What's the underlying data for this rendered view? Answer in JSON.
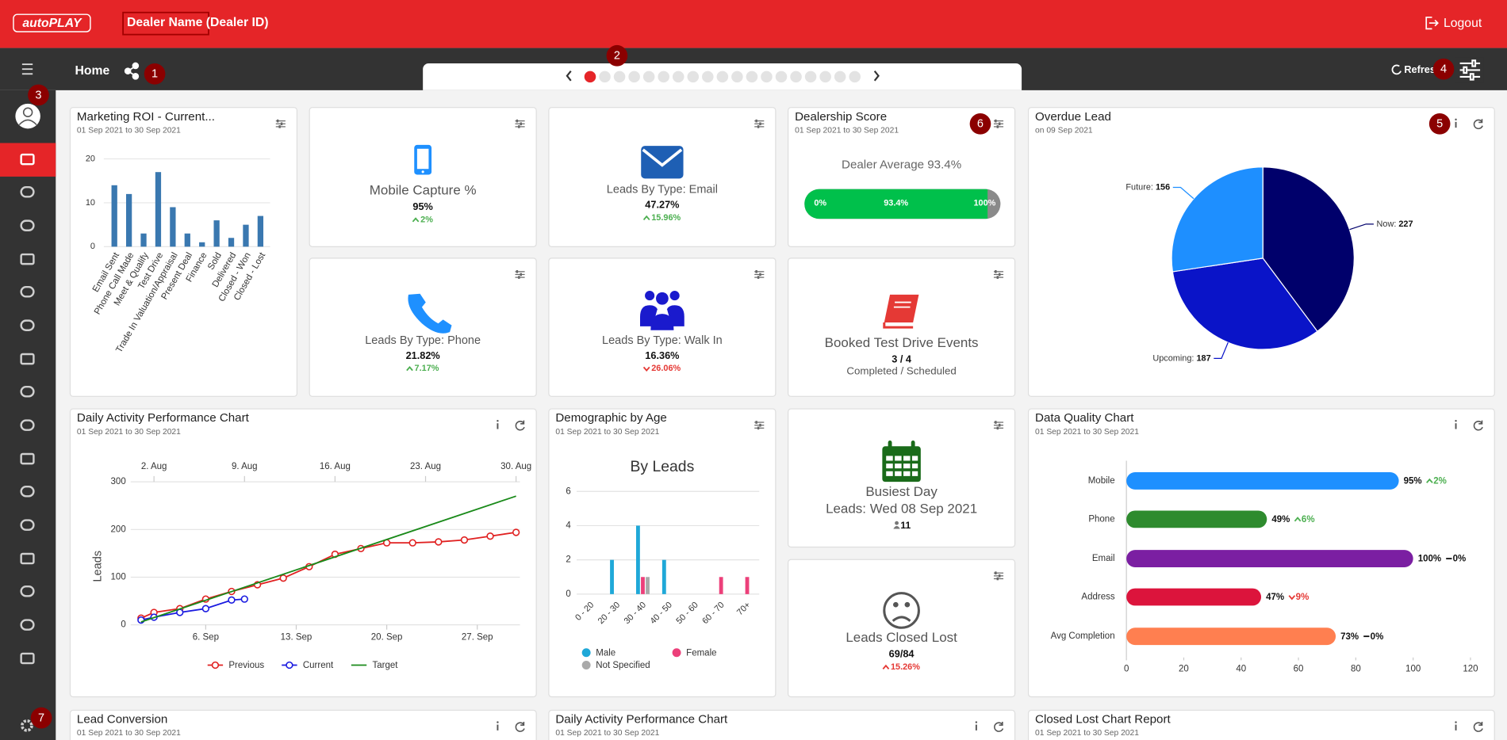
{
  "header": {
    "logo": "autoPLAY",
    "dealer": "Dealer Name (Dealer ID)",
    "logout": "Logout"
  },
  "toolbar": {
    "title": "Home",
    "refresh": "Refresh"
  },
  "badges": [
    "1",
    "2",
    "3",
    "4",
    "5",
    "6",
    "7"
  ],
  "roi": {
    "title": "Marketing ROI - Current...",
    "subtitle": "01 Sep 2021 to 30 Sep 2021",
    "chart": {
      "type": "bar",
      "categories": [
        "Email Sent",
        "Phone Call Made",
        "Meet & Qualify",
        "Test Drive",
        "Trade In Valuation/Appraisal",
        "Present Deal",
        "Finance",
        "Sold",
        "Delivered",
        "Closed - Won",
        "Closed - Lost"
      ],
      "values": [
        14,
        12,
        3,
        17,
        9,
        3,
        1,
        6,
        2,
        5,
        7
      ],
      "color": "#3a78b0",
      "ylim": [
        0,
        21
      ],
      "yticks": [
        0,
        10,
        20
      ],
      "grid": true
    }
  },
  "mobile": {
    "title": "Mobile Capture %",
    "value": "95%",
    "change": "2%",
    "trend": "up",
    "trend_color": "#4caf50"
  },
  "email": {
    "title": "Leads By Type: Email",
    "value": "47.27%",
    "change": "15.96%",
    "trend": "up",
    "trend_color": "#4caf50"
  },
  "phone": {
    "title": "Leads By Type: Phone",
    "value": "21.82%",
    "change": "7.17%",
    "trend": "up",
    "trend_color": "#4caf50"
  },
  "walkin": {
    "title": "Leads By Type: Walk In",
    "value": "16.36%",
    "change": "26.06%",
    "trend": "down",
    "trend_color": "#e53935"
  },
  "score": {
    "title": "Dealership Score",
    "subtitle": "01 Sep 2021 to 30 Sep 2021",
    "label": "Dealer Average 93.4%",
    "value": 93.4,
    "value_label": "93.4%",
    "range": [
      0,
      100
    ],
    "range_labels": [
      "0%",
      "100%"
    ],
    "color": "#00c04b"
  },
  "testdrive": {
    "title": "Booked Test Drive Events",
    "value": "3 / 4",
    "caption": "Completed / Scheduled"
  },
  "overdue": {
    "title": "Overdue Lead",
    "subtitle": "on 09 Sep 2021",
    "chart": {
      "type": "pie",
      "categories": [
        "Now:",
        "Upcoming:",
        "Future:"
      ],
      "values": [
        227,
        187,
        156
      ],
      "colors": [
        "#00006b",
        "#0a14c8",
        "#1e8fff"
      ]
    }
  },
  "daily": {
    "title": "Daily Activity Performance Chart",
    "subtitle": "01 Sep 2021 to 30 Sep 2021",
    "chart": {
      "type": "line",
      "ylabel": "Leads",
      "xlim": [
        0.2,
        30.3
      ],
      "ylim": [
        0,
        300
      ],
      "yticks": [
        0,
        100,
        200,
        300
      ],
      "grid": true,
      "xticks": [
        {
          "value": 6,
          "label": "6. Sep"
        },
        {
          "value": 13,
          "label": "13. Sep"
        },
        {
          "value": 20,
          "label": "20. Sep"
        },
        {
          "value": 27,
          "label": "27. Sep"
        }
      ],
      "x2ticks": [
        {
          "value": 2,
          "label": "2. Aug"
        },
        {
          "value": 9,
          "label": "9. Aug"
        },
        {
          "value": 16,
          "label": "16. Aug"
        },
        {
          "value": 23,
          "label": "23. Aug"
        },
        {
          "value": 30,
          "label": "30. Aug"
        }
      ],
      "series": [
        {
          "name": "Previous",
          "color": "#e02020",
          "marker": true,
          "x": [
            1,
            2,
            4,
            6,
            8,
            10,
            12,
            14,
            16,
            18,
            20,
            22,
            24,
            26,
            28,
            30
          ],
          "values": [
            14,
            26,
            34,
            54,
            70,
            84,
            98,
            122,
            148,
            160,
            172,
            172,
            174,
            178,
            186,
            194
          ]
        },
        {
          "name": "Current",
          "color": "#1a1ae0",
          "marker": true,
          "x": [
            1,
            2,
            4,
            6,
            8,
            9
          ],
          "values": [
            10,
            16,
            26,
            34,
            52,
            54
          ]
        },
        {
          "name": "Target",
          "color": "#1a8a1a",
          "marker": false,
          "x": [
            1,
            30
          ],
          "values": [
            6,
            270
          ]
        }
      ]
    }
  },
  "demographic": {
    "title": "Demographic by Age",
    "subtitle": "01 Sep 2021 to 30 Sep 2021",
    "chart": {
      "type": "bar",
      "title": "By Leads",
      "categories": [
        "0 - 20",
        "20 - 30",
        "30 - 40",
        "40 - 50",
        "50 - 60",
        "60 - 70",
        "70+"
      ],
      "ylim": [
        0,
        6
      ],
      "yticks": [
        0,
        2,
        4,
        6
      ],
      "grid": true,
      "series": [
        {
          "name": "Male",
          "color": "#1fa8d8",
          "values": [
            0,
            2,
            4,
            2,
            0,
            0,
            0
          ]
        },
        {
          "name": "Female",
          "color": "#ec407a",
          "values": [
            0,
            0,
            1,
            0,
            0,
            1,
            1
          ]
        },
        {
          "name": "Not Specified",
          "color": "#a9a9a9",
          "values": [
            0,
            0,
            1,
            0,
            0,
            0,
            0
          ]
        }
      ]
    }
  },
  "busiest": {
    "title": "Busiest Day",
    "subtitle": "Leads: Wed 08 Sep 2021",
    "value": 11
  },
  "closedlost": {
    "title": "Leads Closed Lost",
    "value": "69/84",
    "change": "15.26%",
    "trend": "up",
    "trend_color": "#e53935"
  },
  "quality": {
    "title": "Data Quality Chart",
    "subtitle": "01 Sep 2021 to 30 Sep 2021",
    "chart": {
      "type": "hbar",
      "categories": [
        "Mobile",
        "Phone",
        "Email",
        "Address",
        "Avg Completion"
      ],
      "values": [
        95,
        49,
        100,
        47,
        73
      ],
      "value_labels": [
        "95%",
        "49%",
        "100%",
        "47%",
        "73%"
      ],
      "colors": [
        "#1e90ff",
        "#2e8b2e",
        "#7b1fa2",
        "#dc143c",
        "#ff7f50"
      ],
      "changes": [
        "2%",
        "6%",
        "0%",
        "9%",
        "0%"
      ],
      "trends": [
        "up",
        "up",
        "flat",
        "down",
        "flat"
      ],
      "trend_colors": [
        "#4caf50",
        "#4caf50",
        "#111111",
        "#e53935",
        "#111111"
      ],
      "xlim": [
        0,
        120
      ],
      "xticks": [
        0,
        20,
        40,
        60,
        80,
        100,
        120
      ]
    }
  },
  "bottom": [
    {
      "title": "Lead Conversion",
      "subtitle": "01 Sep 2021 to 30 Sep 2021"
    },
    {
      "title": "Daily Activity Performance Chart",
      "subtitle": "01 Sep 2021 to 30 Sep 2021"
    },
    {
      "title": "Closed Lost Chart Report",
      "subtitle": "01 Sep 2021 to 30 Sep 2021"
    }
  ]
}
